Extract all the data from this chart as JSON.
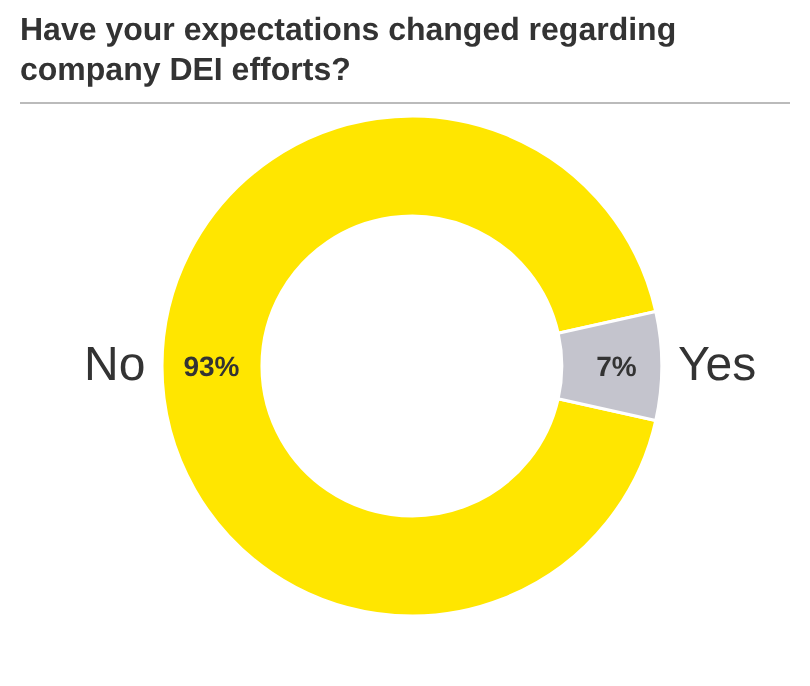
{
  "chart_data": {
    "type": "donut",
    "title": "Have your expectations changed regarding company DEI efforts?",
    "categories": [
      "No",
      "Yes"
    ],
    "values": [
      93,
      7
    ],
    "colors": [
      "#ffe600",
      "#c4c4cd"
    ],
    "value_labels": [
      "93%",
      "7%"
    ],
    "legend": false
  }
}
